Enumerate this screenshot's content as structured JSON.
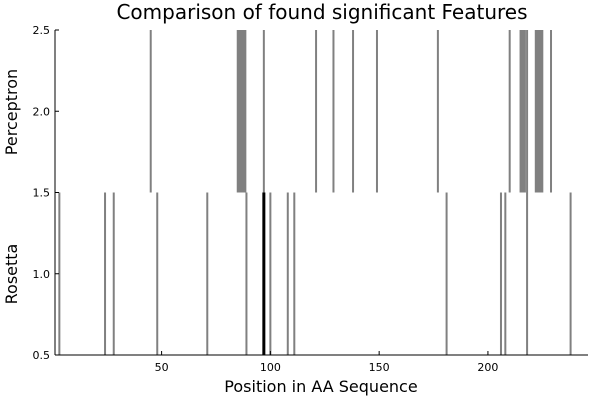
{
  "chart_data": {
    "type": "bar",
    "title": "Comparison of found significant Features",
    "xlabel": "Position in AA Sequence",
    "xlim": [
      1,
      246
    ],
    "ylim": [
      0.5,
      2.5
    ],
    "x_ticks": [
      50,
      100,
      150,
      200
    ],
    "y_ticks": [
      0.5,
      1.0,
      1.5,
      2.0,
      2.5
    ],
    "x_tick_labels": [
      "50",
      "100",
      "150",
      "200"
    ],
    "y_tick_labels": [
      "0.5",
      "1.0",
      "1.5",
      "2.0",
      "2.5"
    ],
    "grid": false,
    "colors": {
      "feature": "#808080",
      "highlight": "#000000",
      "axis": "#000000"
    },
    "rows": [
      {
        "name": "Rosetta",
        "y_range": [
          0.5,
          1.5
        ],
        "positions": [
          3,
          24,
          28,
          48,
          71,
          89,
          100,
          108,
          111,
          181,
          206,
          208,
          218,
          238
        ],
        "highlight_positions": [
          97
        ]
      },
      {
        "name": "Perceptron",
        "y_range": [
          1.5,
          2.5
        ],
        "positions": [
          45,
          85,
          85.5,
          86,
          86.5,
          87,
          87.5,
          88,
          88.5,
          97,
          121,
          129,
          138,
          149,
          177,
          210,
          215,
          215.5,
          216,
          216.5,
          217,
          218,
          222,
          222.5,
          223,
          223.5,
          224,
          224.5,
          225,
          229
        ]
      }
    ]
  }
}
